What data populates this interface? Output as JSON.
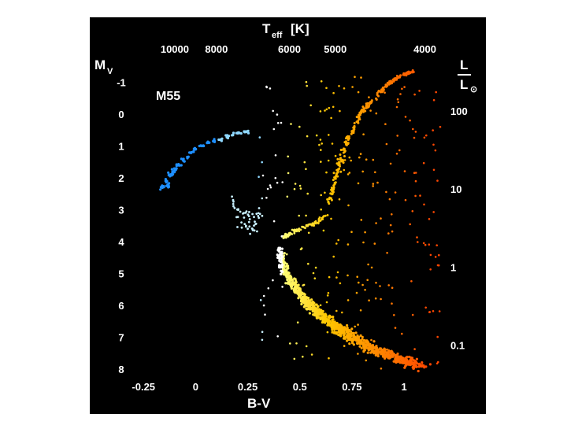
{
  "chart_data": {
    "type": "scatter",
    "title": "M55",
    "xlabel": "B-V",
    "ylabel": "M",
    "ylabel_sub": "V",
    "top_axis_label": "T",
    "top_axis_label_sub": "eff",
    "top_axis_unit": "[K]",
    "right_axis_label_num": "L",
    "right_axis_label_den": "L",
    "right_axis_label_den_symbol": "⊙",
    "xlim": [
      -0.3,
      1.2
    ],
    "ylim": [
      8.2,
      -1.6
    ],
    "x_ticks": [
      {
        "value": -0.25,
        "label": "-0.25"
      },
      {
        "value": 0,
        "label": "0"
      },
      {
        "value": 0.25,
        "label": "0.25"
      },
      {
        "value": 0.5,
        "label": "0.5"
      },
      {
        "value": 0.75,
        "label": "0.75"
      },
      {
        "value": 1,
        "label": "1"
      }
    ],
    "y_ticks": [
      {
        "value": -1,
        "label": "-1"
      },
      {
        "value": 0,
        "label": "0"
      },
      {
        "value": 1,
        "label": "1"
      },
      {
        "value": 2,
        "label": "2"
      },
      {
        "value": 3,
        "label": "3"
      },
      {
        "value": 4,
        "label": "4"
      },
      {
        "value": 5,
        "label": "5"
      },
      {
        "value": 6,
        "label": "6"
      },
      {
        "value": 7,
        "label": "7"
      },
      {
        "value": 8,
        "label": "8"
      }
    ],
    "top_ticks": [
      {
        "bv": -0.1,
        "label": "10000"
      },
      {
        "bv": 0.1,
        "label": "8000"
      },
      {
        "bv": 0.45,
        "label": "6000"
      },
      {
        "bv": 0.67,
        "label": "5000"
      },
      {
        "bv": 1.1,
        "label": "4000"
      }
    ],
    "right_ticks": [
      {
        "mv": -0.1,
        "label": "100"
      },
      {
        "mv": 2.35,
        "label": "10"
      },
      {
        "mv": 4.8,
        "label": "1"
      },
      {
        "mv": 7.25,
        "label": "0.1"
      }
    ],
    "series": [
      {
        "type": "blue horizontal branch",
        "points": [
          [
            -0.12,
            1.9
          ],
          [
            -0.1,
            1.75
          ],
          [
            -0.08,
            1.6
          ],
          [
            -0.06,
            1.45
          ],
          [
            -0.04,
            1.35
          ],
          [
            -0.02,
            1.2
          ],
          [
            0,
            1.1
          ],
          [
            0.03,
            1.0
          ],
          [
            0.06,
            0.9
          ],
          [
            0.09,
            0.85
          ],
          [
            0.12,
            0.8
          ],
          [
            0.15,
            0.7
          ],
          [
            0.18,
            0.65
          ],
          [
            0.21,
            0.6
          ],
          [
            0.24,
            0.55
          ],
          [
            -0.14,
            2.1
          ],
          [
            -0.16,
            2.3
          ],
          [
            -0.13,
            2.25
          ]
        ]
      },
      {
        "type": "blue stragglers",
        "points": [
          [
            0.18,
            2.7
          ],
          [
            0.2,
            3.0
          ],
          [
            0.24,
            3.1
          ],
          [
            0.26,
            3.3
          ],
          [
            0.28,
            3.5
          ],
          [
            0.3,
            3.2
          ],
          [
            0.22,
            3.4
          ],
          [
            0.25,
            3.6
          ]
        ]
      },
      {
        "type": "main sequence",
        "points": [
          [
            0.4,
            4.2
          ],
          [
            0.42,
            4.8
          ],
          [
            0.46,
            5.3
          ],
          [
            0.52,
            5.8
          ],
          [
            0.58,
            6.2
          ],
          [
            0.66,
            6.6
          ],
          [
            0.75,
            7.0
          ],
          [
            0.86,
            7.4
          ],
          [
            0.98,
            7.7
          ],
          [
            1.08,
            7.9
          ]
        ]
      },
      {
        "type": "subgiant branch",
        "points": [
          [
            0.42,
            3.9
          ],
          [
            0.46,
            3.7
          ],
          [
            0.52,
            3.55
          ],
          [
            0.58,
            3.4
          ],
          [
            0.62,
            3.2
          ]
        ]
      },
      {
        "type": "red giant branch",
        "points": [
          [
            0.64,
            2.8
          ],
          [
            0.66,
            2.2
          ],
          [
            0.69,
            1.6
          ],
          [
            0.72,
            1.0
          ],
          [
            0.76,
            0.4
          ],
          [
            0.8,
            -0.1
          ],
          [
            0.86,
            -0.5
          ],
          [
            0.92,
            -0.9
          ],
          [
            0.98,
            -1.2
          ],
          [
            1.05,
            -1.35
          ]
        ]
      }
    ],
    "grid": false,
    "legend": "none"
  },
  "colors": {
    "background": "#000000",
    "text": "#ffffff",
    "hb": "#1e90ff",
    "hot": "#ffffff",
    "ms": "#ffd200",
    "cool": "#ff5a00"
  }
}
